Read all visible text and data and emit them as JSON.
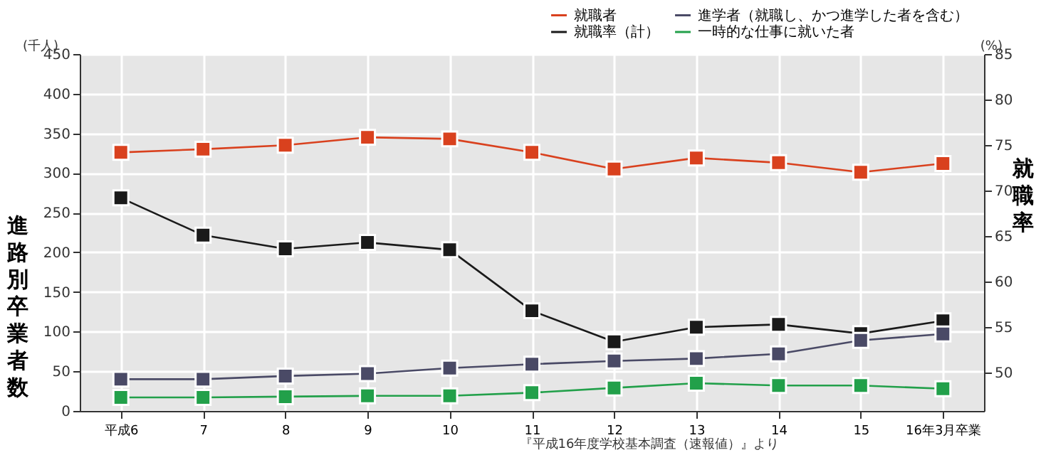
{
  "chart_data": {
    "type": "line",
    "categories": [
      "平成6",
      "7",
      "8",
      "9",
      "10",
      "11",
      "12",
      "13",
      "14",
      "15",
      "16年3月卒業"
    ],
    "series": [
      {
        "name": "就職者",
        "color": "#d9411e",
        "values": [
          326,
          330,
          335,
          345,
          343,
          326,
          305,
          319,
          313,
          301,
          312
        ]
      },
      {
        "name": "進学者（就職し、かつ進学した者を含む）",
        "color": "#4a4a66",
        "values": [
          40,
          40,
          44,
          47,
          54,
          59,
          63,
          66,
          72,
          89,
          97
        ]
      },
      {
        "name": "就職率（計）",
        "color": "#1a1a1a",
        "axis": "y2",
        "values": [
          69.2,
          65.1,
          63.6,
          64.3,
          63.5,
          56.8,
          53.4,
          55.0,
          55.3,
          54.3,
          55.7
        ]
      },
      {
        "name": "一時的な仕事に就いた者",
        "color": "#22a04a",
        "values": [
          17,
          17,
          18,
          19,
          19,
          23,
          29,
          35,
          32,
          32,
          28
        ]
      }
    ],
    "ylabel": "進路別卒業者数",
    "y2label": "就職率",
    "ylim": [
      0,
      450
    ],
    "yticks": [
      0,
      50,
      100,
      150,
      200,
      250,
      300,
      350,
      400,
      450
    ],
    "y2lim": [
      45.8,
      85
    ],
    "y2ticks": [
      50,
      55,
      60,
      65,
      70,
      75,
      80,
      85
    ],
    "annotations": [
      "(千人)",
      "(%)",
      "『平成16年度学校基本調査（速報値）』より"
    ],
    "grid": true,
    "legend": "top right",
    "marker": "square",
    "line_style": "solid"
  }
}
